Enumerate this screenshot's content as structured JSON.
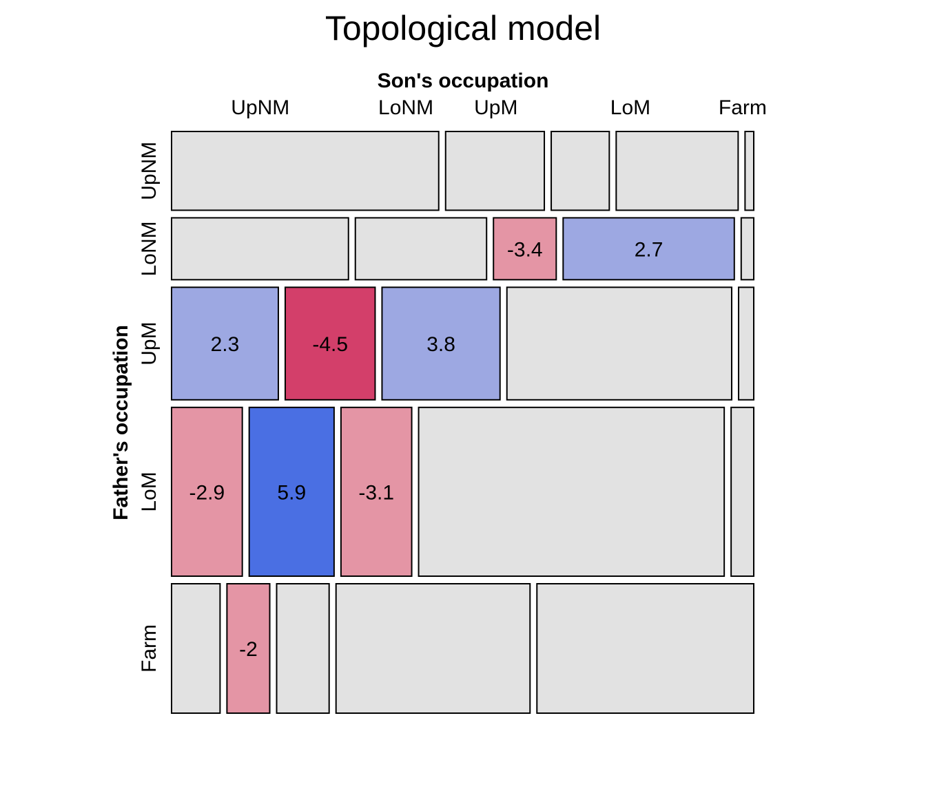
{
  "chart_data": {
    "type": "mosaic",
    "title": "Topological model",
    "xlabel": "Son's occupation",
    "ylabel": "Father's occupation",
    "columns": [
      "UpNM",
      "LoNM",
      "UpM",
      "LoM",
      "Farm"
    ],
    "rows": [
      "UpNM",
      "LoNM",
      "UpM",
      "LoM",
      "Farm"
    ],
    "column_proportions": [
      0.32,
      0.18,
      0.12,
      0.34,
      0.04
    ],
    "row_proportions": [
      0.14,
      0.11,
      0.2,
      0.3,
      0.23
    ],
    "cell_proportions": [
      [
        0.46,
        0.17,
        0.1,
        0.21,
        0.015
      ],
      [
        0.31,
        0.23,
        0.11,
        0.3,
        0.022
      ],
      [
        0.19,
        0.16,
        0.21,
        0.4,
        0.027
      ],
      [
        0.125,
        0.15,
        0.125,
        0.54,
        0.04
      ],
      [
        0.085,
        0.075,
        0.092,
        0.34,
        0.38
      ]
    ],
    "residual_labels": [
      [
        "",
        "",
        "",
        "",
        ""
      ],
      [
        "",
        "",
        "-3.4",
        "2.7",
        ""
      ],
      [
        "2.3",
        "-4.5",
        "3.8",
        "",
        ""
      ],
      [
        "-2.9",
        "5.9",
        "-3.1",
        "",
        ""
      ],
      [
        "",
        "-2",
        "",
        "",
        ""
      ]
    ],
    "fills": [
      [
        "#e2e2e2",
        "#e2e2e2",
        "#e2e2e2",
        "#e2e2e2",
        "#e2e2e2"
      ],
      [
        "#e2e2e2",
        "#e2e2e2",
        "#e495a5",
        "#9da8e2",
        "#e2e2e2"
      ],
      [
        "#9da8e2",
        "#d33f6a",
        "#9da8e2",
        "#e2e2e2",
        "#e2e2e2"
      ],
      [
        "#e495a5",
        "#4a6fe3",
        "#e495a5",
        "#e2e2e2",
        "#e2e2e2"
      ],
      [
        "#e2e2e2",
        "#e495a5",
        "#e2e2e2",
        "#e2e2e2",
        "#e2e2e2"
      ]
    ]
  }
}
